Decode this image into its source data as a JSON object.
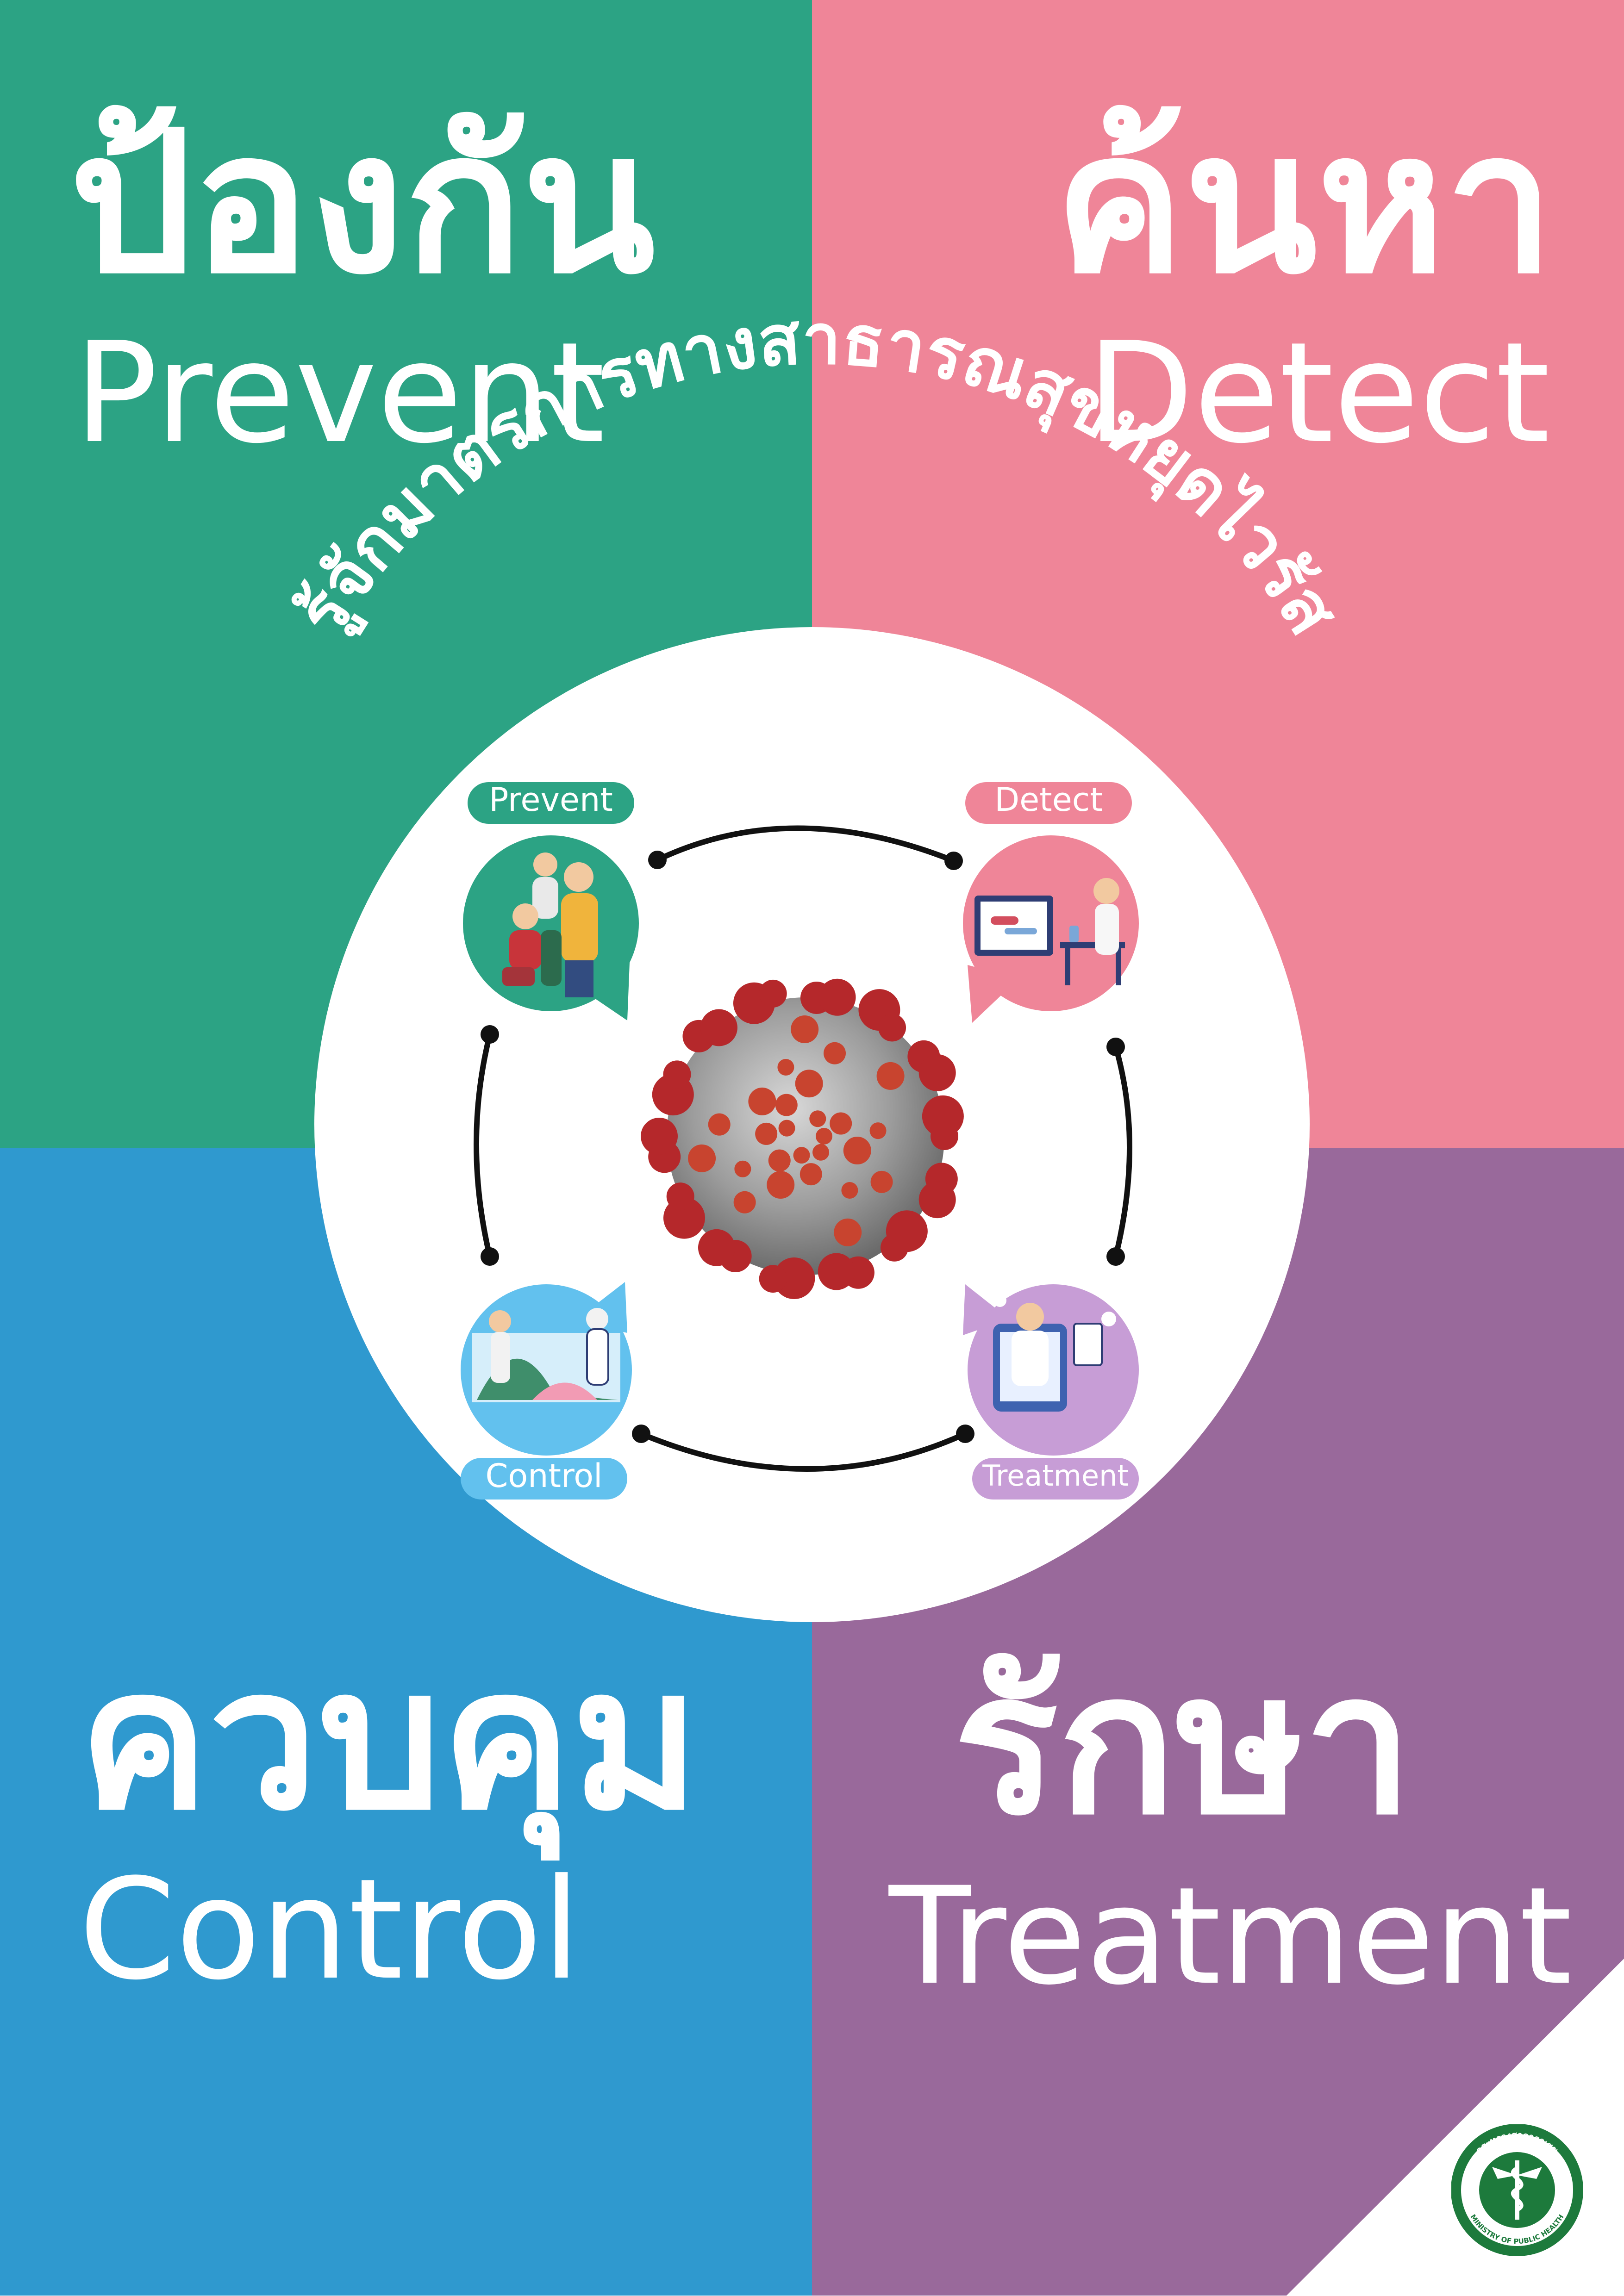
{
  "quadrants": {
    "prevent": {
      "thai": "ป้องกัน",
      "eng": "Prevent",
      "color": "#2ca384"
    },
    "detect": {
      "thai": "ค้นหา",
      "eng": "Detect",
      "color": "#ef8598"
    },
    "control": {
      "thai": "ควบคุม",
      "eng": "Control",
      "color": "#2f99cf"
    },
    "treatment": {
      "thai": "รักษา",
      "eng": "Treatment",
      "color": "#99699b"
    }
  },
  "arc_title": "รู้จักมาตรการทางสาธารณสุขหยุดไวรัส",
  "badges": {
    "prevent": "Prevent",
    "detect": "Detect",
    "control": "Control",
    "treatment": "Treatment"
  },
  "icons": {
    "center": "coronavirus-icon",
    "prevent": "family-wearing-masks-icon",
    "detect": "lab-testing-icon",
    "control": "health-workers-curve-icon",
    "treatment": "doctor-treatment-icon",
    "logo": "ministry-of-public-health-logo"
  },
  "logo": {
    "thai": "กระทรวงสาธารณสุข",
    "eng": "MINISTRY OF PUBLIC HEALTH"
  }
}
